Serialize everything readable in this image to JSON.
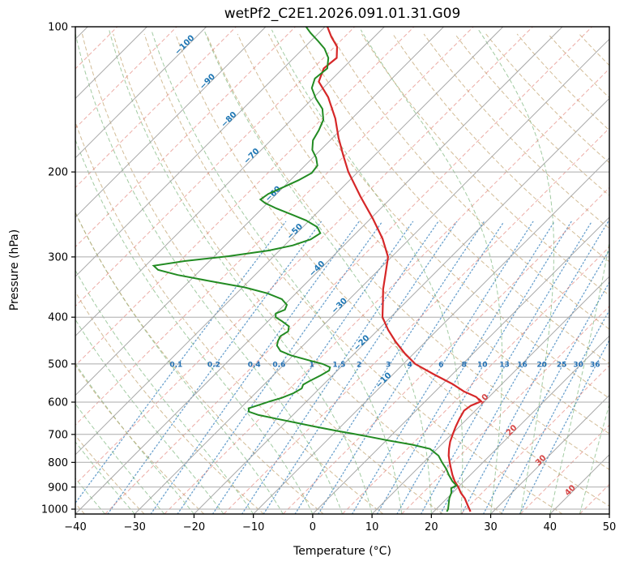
{
  "title": "wetPf2_C2E1.2026.091.01.31.G09",
  "axes": {
    "x_label": "Temperature (°C)",
    "y_label": "Pressure (hPa)",
    "x_ticks": [
      {
        "v": -40,
        "label": "−40"
      },
      {
        "v": -30,
        "label": "−30"
      },
      {
        "v": -20,
        "label": "−20"
      },
      {
        "v": -10,
        "label": "−10"
      },
      {
        "v": 0,
        "label": "0"
      },
      {
        "v": 10,
        "label": "10"
      },
      {
        "v": 20,
        "label": "20"
      },
      {
        "v": 30,
        "label": "30"
      },
      {
        "v": 40,
        "label": "40"
      },
      {
        "v": 50,
        "label": "50"
      }
    ],
    "y_ticks": [
      100,
      200,
      300,
      400,
      500,
      600,
      700,
      800,
      900,
      1000
    ],
    "x_range_c": [
      -40,
      50
    ],
    "p_range_hpa": [
      100,
      1023
    ],
    "skew_deg": 45
  },
  "style": {
    "temperature_color": "#d62728",
    "dewpoint_color": "#228B22",
    "isotherm_color": "#9f9f9f",
    "isotherm_dashed_color": "#e0756b",
    "dry_adiabat_color": "#bf9f69",
    "moist_adiabat_color": "#64a864",
    "mixing_line_color": "#4f8fc4",
    "cold_label_color": "#1f77b4",
    "warm_label_color": "#d64545",
    "mixing_label_color": "#2470b3",
    "grid_color": "#ababab",
    "border_color": "#000000"
  },
  "isotherm_labels": {
    "cold": [
      {
        "t": -100,
        "label": "−100",
        "p": 110
      },
      {
        "t": -90,
        "label": "−90",
        "p": 131
      },
      {
        "t": -80,
        "label": "−80",
        "p": 157
      },
      {
        "t": -70,
        "label": "−70",
        "p": 187
      },
      {
        "t": -60,
        "label": "−60",
        "p": 224
      },
      {
        "t": -50,
        "label": "−50",
        "p": 268
      },
      {
        "t": -40,
        "label": "−40",
        "p": 320
      },
      {
        "t": -30,
        "label": "−30",
        "p": 382
      },
      {
        "t": -20,
        "label": "−20",
        "p": 456
      },
      {
        "t": -10,
        "label": "−10",
        "p": 545
      }
    ],
    "warm": [
      {
        "t": 10,
        "label": "10",
        "p": 597
      },
      {
        "t": 20,
        "label": "20",
        "p": 692
      },
      {
        "t": 30,
        "label": "30",
        "p": 799
      },
      {
        "t": 40,
        "label": "40",
        "p": 922
      }
    ]
  },
  "mixing_ratio_labels": {
    "values": [
      "0.1",
      "0.2",
      "0.4",
      "0.6",
      "1",
      "1.5",
      "2",
      "3",
      "4",
      "6",
      "8",
      "10",
      "13",
      "16",
      "20",
      "25",
      "30",
      "36"
    ],
    "label_pressure": 507
  },
  "chart_data": {
    "type": "line",
    "title": "wetPf2_C2E1.2026.091.01.31.G09",
    "xlabel": "Temperature (°C)",
    "ylabel": "Pressure (hPa)",
    "x_range": [
      -40,
      50
    ],
    "y_scale": "log",
    "y_range": [
      1023,
      100
    ],
    "grid": true,
    "legend": "none",
    "series": [
      {
        "name": "temperature",
        "color": "#d62728",
        "points": [
          [
            1012,
            26.2
          ],
          [
            1000,
            25.6
          ],
          [
            975,
            24.3
          ],
          [
            950,
            23.0
          ],
          [
            925,
            21.4
          ],
          [
            900,
            20.0
          ],
          [
            875,
            18.4
          ],
          [
            850,
            17.0
          ],
          [
            825,
            15.7
          ],
          [
            800,
            14.4
          ],
          [
            775,
            13.1
          ],
          [
            750,
            12.0
          ],
          [
            725,
            11.0
          ],
          [
            700,
            10.2
          ],
          [
            675,
            9.4
          ],
          [
            650,
            8.7
          ],
          [
            625,
            8.1
          ],
          [
            610,
            8.4
          ],
          [
            598,
            9.4
          ],
          [
            585,
            7.8
          ],
          [
            570,
            4.8
          ],
          [
            550,
            1.6
          ],
          [
            525,
            -3.2
          ],
          [
            500,
            -8.0
          ],
          [
            475,
            -11.6
          ],
          [
            450,
            -15.0
          ],
          [
            425,
            -18.3
          ],
          [
            400,
            -21.4
          ],
          [
            375,
            -23.6
          ],
          [
            350,
            -26.0
          ],
          [
            325,
            -28.2
          ],
          [
            300,
            -30.6
          ],
          [
            275,
            -34.6
          ],
          [
            250,
            -39.6
          ],
          [
            225,
            -45.4
          ],
          [
            200,
            -51.6
          ],
          [
            185,
            -55.2
          ],
          [
            170,
            -59.0
          ],
          [
            155,
            -62.8
          ],
          [
            140,
            -67.6
          ],
          [
            130,
            -71.8
          ],
          [
            122,
            -73.2
          ],
          [
            116,
            -72.8
          ],
          [
            110,
            -74.6
          ],
          [
            105,
            -77.2
          ],
          [
            100,
            -79.6
          ]
        ]
      },
      {
        "name": "dewpoint",
        "color": "#228B22",
        "points": [
          [
            1012,
            22.2
          ],
          [
            1000,
            22.0
          ],
          [
            975,
            21.2
          ],
          [
            950,
            20.4
          ],
          [
            925,
            19.8
          ],
          [
            905,
            19.0
          ],
          [
            893,
            19.4
          ],
          [
            875,
            18.0
          ],
          [
            850,
            16.4
          ],
          [
            825,
            14.9
          ],
          [
            800,
            13.1
          ],
          [
            775,
            11.4
          ],
          [
            750,
            8.8
          ],
          [
            735,
            5.0
          ],
          [
            720,
            0.2
          ],
          [
            708,
            -3.4
          ],
          [
            698,
            -6.6
          ],
          [
            688,
            -10.0
          ],
          [
            675,
            -14.2
          ],
          [
            662,
            -18.2
          ],
          [
            650,
            -22.0
          ],
          [
            638,
            -25.8
          ],
          [
            628,
            -28.0
          ],
          [
            618,
            -28.6
          ],
          [
            608,
            -27.4
          ],
          [
            598,
            -26.2
          ],
          [
            588,
            -24.8
          ],
          [
            575,
            -23.6
          ],
          [
            562,
            -23.0
          ],
          [
            552,
            -23.4
          ],
          [
            542,
            -22.9
          ],
          [
            528,
            -22.0
          ],
          [
            516,
            -21.4
          ],
          [
            508,
            -21.8
          ],
          [
            500,
            -23.6
          ],
          [
            490,
            -27.0
          ],
          [
            480,
            -30.4
          ],
          [
            470,
            -32.9
          ],
          [
            458,
            -34.4
          ],
          [
            448,
            -35.0
          ],
          [
            438,
            -35.4
          ],
          [
            428,
            -34.9
          ],
          [
            418,
            -35.6
          ],
          [
            408,
            -37.6
          ],
          [
            400,
            -39.4
          ],
          [
            393,
            -40.0
          ],
          [
            386,
            -39.1
          ],
          [
            377,
            -39.6
          ],
          [
            367,
            -41.4
          ],
          [
            357,
            -44.8
          ],
          [
            347,
            -49.6
          ],
          [
            337,
            -56.4
          ],
          [
            327,
            -63.0
          ],
          [
            319,
            -67.2
          ],
          [
            313,
            -68.6
          ],
          [
            306,
            -64.2
          ],
          [
            299,
            -57.6
          ],
          [
            291,
            -51.8
          ],
          [
            284,
            -48.6
          ],
          [
            276,
            -46.6
          ],
          [
            268,
            -46.0
          ],
          [
            260,
            -47.6
          ],
          [
            252,
            -50.6
          ],
          [
            245,
            -54.0
          ],
          [
            238,
            -57.6
          ],
          [
            232,
            -60.4
          ],
          [
            228,
            -61.8
          ],
          [
            222,
            -61.4
          ],
          [
            215,
            -60.0
          ],
          [
            208,
            -58.6
          ],
          [
            201,
            -57.6
          ],
          [
            194,
            -57.9
          ],
          [
            187,
            -59.4
          ],
          [
            180,
            -61.4
          ],
          [
            172,
            -62.9
          ],
          [
            164,
            -63.6
          ],
          [
            156,
            -64.6
          ],
          [
            148,
            -66.6
          ],
          [
            141,
            -69.4
          ],
          [
            134,
            -71.9
          ],
          [
            128,
            -73.0
          ],
          [
            122,
            -72.6
          ],
          [
            116,
            -74.2
          ],
          [
            111,
            -76.4
          ],
          [
            107,
            -78.8
          ],
          [
            103,
            -81.4
          ],
          [
            100,
            -83.2
          ]
        ]
      }
    ],
    "background": {
      "isotherms_c": {
        "start": -120,
        "end": 50,
        "step": 10
      },
      "isotherms_dashed_c": {
        "start": -115,
        "end": 45,
        "step": 10
      },
      "dry_adiabats_theta_c": {
        "start": -40,
        "end": 220,
        "step": 10
      },
      "moist_adiabats_start_c": {
        "start": -45,
        "end": 45,
        "step": 5
      },
      "mixing_ratios_g_kg": [
        0.1,
        0.2,
        0.4,
        0.6,
        1,
        1.5,
        2,
        3,
        4,
        6,
        8,
        10,
        13,
        16,
        20,
        25,
        30,
        36
      ]
    }
  }
}
